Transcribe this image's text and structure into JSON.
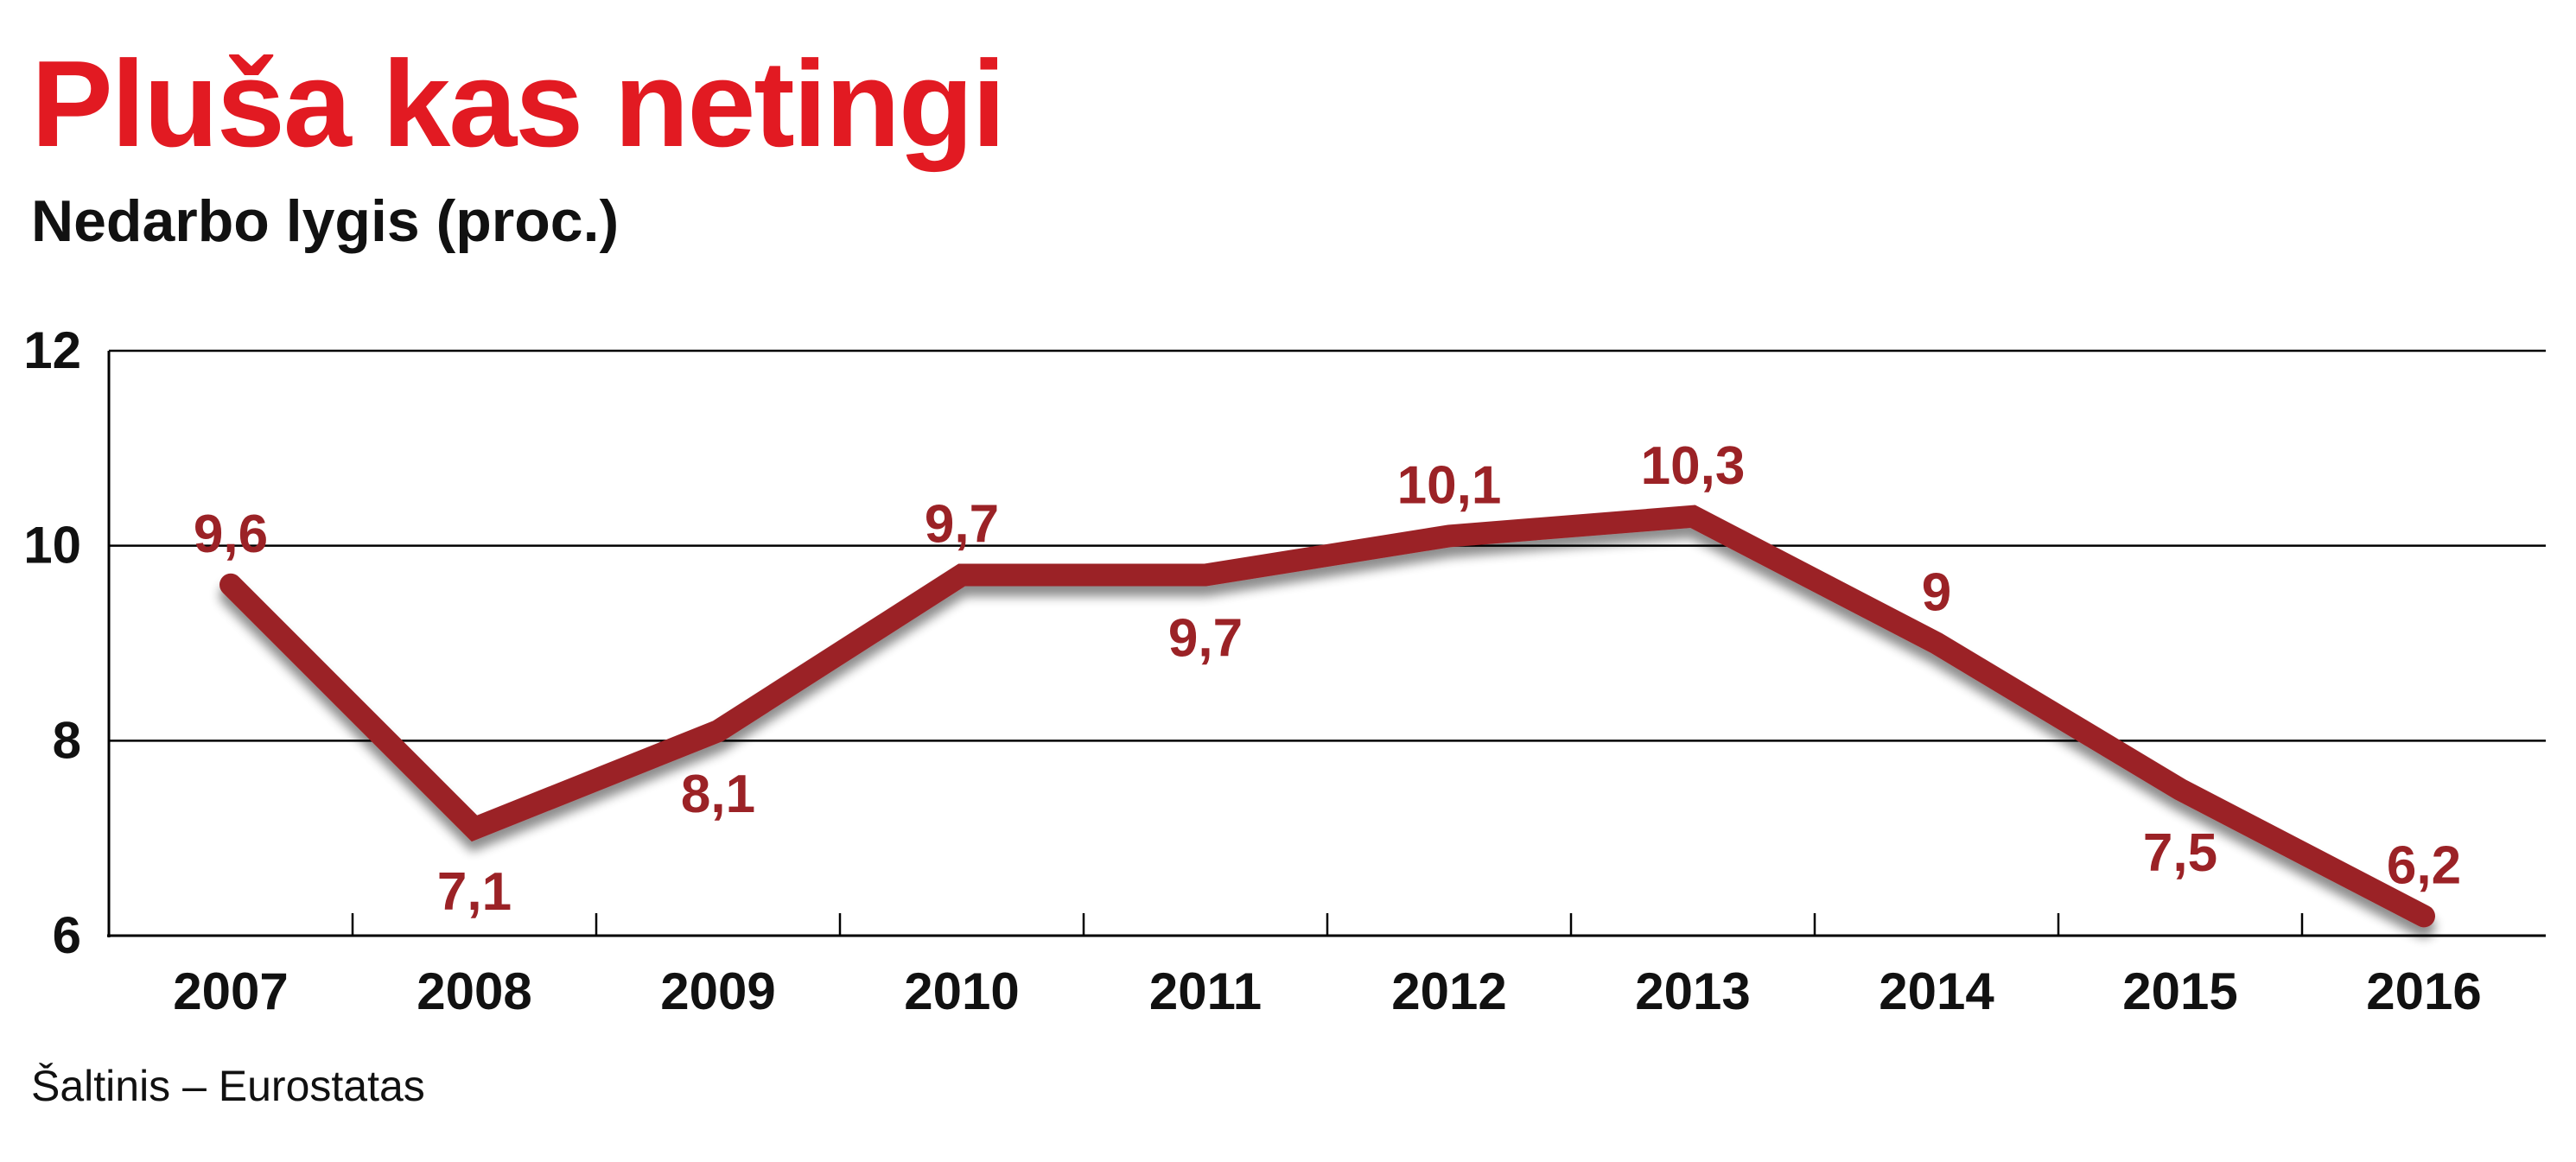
{
  "header": {
    "title": "Pluša kas netingi",
    "subtitle": "Nedarbo lygis (proc.)"
  },
  "footer": {
    "source": "Šaltinis – Eurostatas"
  },
  "colors": {
    "title": "#e21a22",
    "line": "#9b2226",
    "label": "#9b2226",
    "axis": "#000000"
  },
  "chart_data": {
    "type": "line",
    "title": "Pluša kas netingi",
    "subtitle": "Nedarbo lygis (proc.)",
    "xlabel": "",
    "ylabel": "",
    "categories": [
      "2007",
      "2008",
      "2009",
      "2010",
      "2011",
      "2012",
      "2013",
      "2014",
      "2015",
      "2016"
    ],
    "series": [
      {
        "values": [
          9.6,
          7.1,
          8.1,
          9.7,
          9.7,
          10.1,
          10.3,
          9,
          7.5,
          6.2
        ],
        "data_labels": [
          "9,6",
          "7,1",
          "8,1",
          "9,7",
          "9,7",
          "10,1",
          "10,3",
          "9",
          "7,5",
          "6,2"
        ],
        "label_positions": [
          "above",
          "below",
          "below",
          "above",
          "below",
          "above",
          "above",
          "above",
          "below",
          "above"
        ]
      }
    ],
    "ylim": [
      6,
      12
    ],
    "yticks": [
      6,
      8,
      10,
      12
    ],
    "ytick_labels": [
      "6",
      "8",
      "10",
      "12"
    ],
    "grid": true,
    "legend": "none"
  }
}
